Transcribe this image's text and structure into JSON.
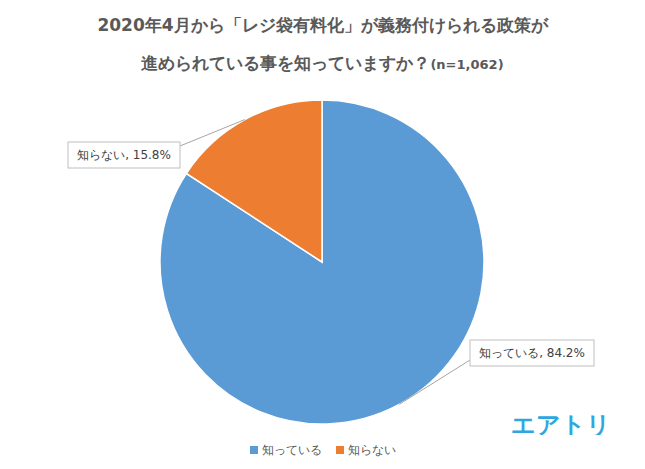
{
  "chart_data": {
    "type": "pie",
    "title": [
      "2020年4月から「レジ袋有料化」が義務付けられる政策が",
      "進められている事を知っていますか？"
    ],
    "subtitle": "(n=1,062)",
    "categories": [
      "知っている",
      "知らない"
    ],
    "values": [
      84.2,
      15.8
    ],
    "value_labels": [
      "知っている, 84.2%",
      "知らない, 15.8%"
    ],
    "colors": [
      "#5B9BD5",
      "#ED7D31"
    ],
    "data_labels": true,
    "legend": "bottom",
    "annotations": [
      "エアトリ"
    ]
  }
}
